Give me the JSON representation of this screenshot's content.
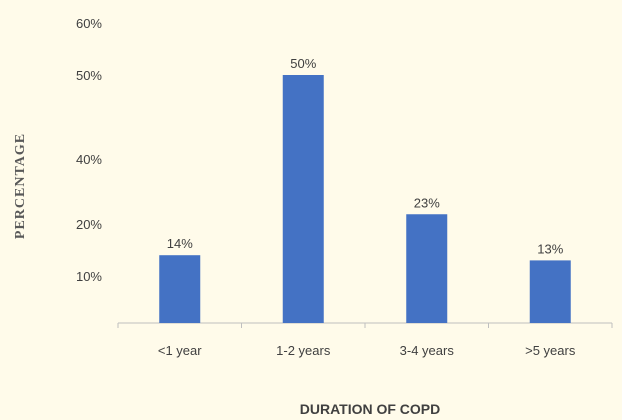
{
  "chart_data": {
    "type": "bar",
    "title": "",
    "xlabel": "DURATION OF COPD",
    "ylabel": "PERCENTAGE",
    "categories": [
      "<1 year",
      "1-2 years",
      "3-4 years",
      ">5 years"
    ],
    "series": [
      {
        "values": [
          14,
          50,
          23,
          13
        ],
        "data_labels": [
          "14%",
          "50%",
          "23%",
          "13%"
        ]
      }
    ],
    "y_tick_labels": [
      "10%",
      "20%",
      "40%",
      "50%",
      "60%"
    ],
    "grid": false,
    "legend": "none",
    "bar_color": "#4472c4"
  }
}
